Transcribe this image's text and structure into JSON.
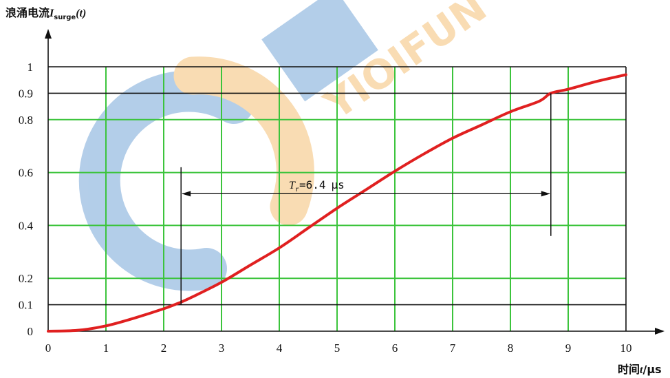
{
  "chart_data": {
    "type": "line",
    "ylabel": {
      "prefix": "浪涌电流",
      "sym": "I",
      "sub": "surge",
      "arg": "(t)"
    },
    "xlabel": {
      "prefix": "时间",
      "sym": "t",
      "unit": "/μs"
    },
    "xlim": [
      0,
      10
    ],
    "ylim": [
      0,
      1
    ],
    "x_ticks": [
      "0",
      "1",
      "2",
      "3",
      "4",
      "5",
      "6",
      "7",
      "8",
      "9",
      "10"
    ],
    "y_ticks": [
      {
        "v": 0,
        "label": "0"
      },
      {
        "v": 0.1,
        "label": "0.1"
      },
      {
        "v": 0.2,
        "label": "0.2"
      },
      {
        "v": 0.4,
        "label": "0.4"
      },
      {
        "v": 0.6,
        "label": "0.6"
      },
      {
        "v": 0.8,
        "label": "0.8"
      },
      {
        "v": 0.9,
        "label": "0.9"
      },
      {
        "v": 1,
        "label": "1"
      }
    ],
    "black_hlines": [
      0.1,
      0.9,
      1
    ],
    "green_hlines": [
      0.2,
      0.4,
      0.6,
      0.8
    ],
    "grid": true,
    "series": [
      {
        "color": "#e02020",
        "x": [
          0,
          0.5,
          1.0,
          1.5,
          2.0,
          2.3,
          2.5,
          3.0,
          3.5,
          4.0,
          4.5,
          5.0,
          5.5,
          6.0,
          6.5,
          7.0,
          7.5,
          8.0,
          8.5,
          8.7,
          9.0,
          9.5,
          10.0
        ],
        "y": [
          0.0,
          0.003,
          0.02,
          0.05,
          0.085,
          0.11,
          0.13,
          0.185,
          0.25,
          0.315,
          0.39,
          0.465,
          0.535,
          0.605,
          0.67,
          0.73,
          0.78,
          0.83,
          0.87,
          0.9,
          0.915,
          0.945,
          0.97
        ]
      }
    ],
    "annotation": {
      "sym": "T",
      "sub": "r",
      "value": "=6.4",
      "unit": "μs",
      "x_start": 2.3,
      "x_end": 8.7,
      "y": 0.52,
      "v_left_top": 0.62,
      "v_right_top": 0.9,
      "v_right_bottom": 0.36
    }
  },
  "watermark": {
    "text": "YIOIFUN",
    "colors": {
      "blue": "#3b7fc6",
      "orange": "#f1a53a"
    }
  }
}
